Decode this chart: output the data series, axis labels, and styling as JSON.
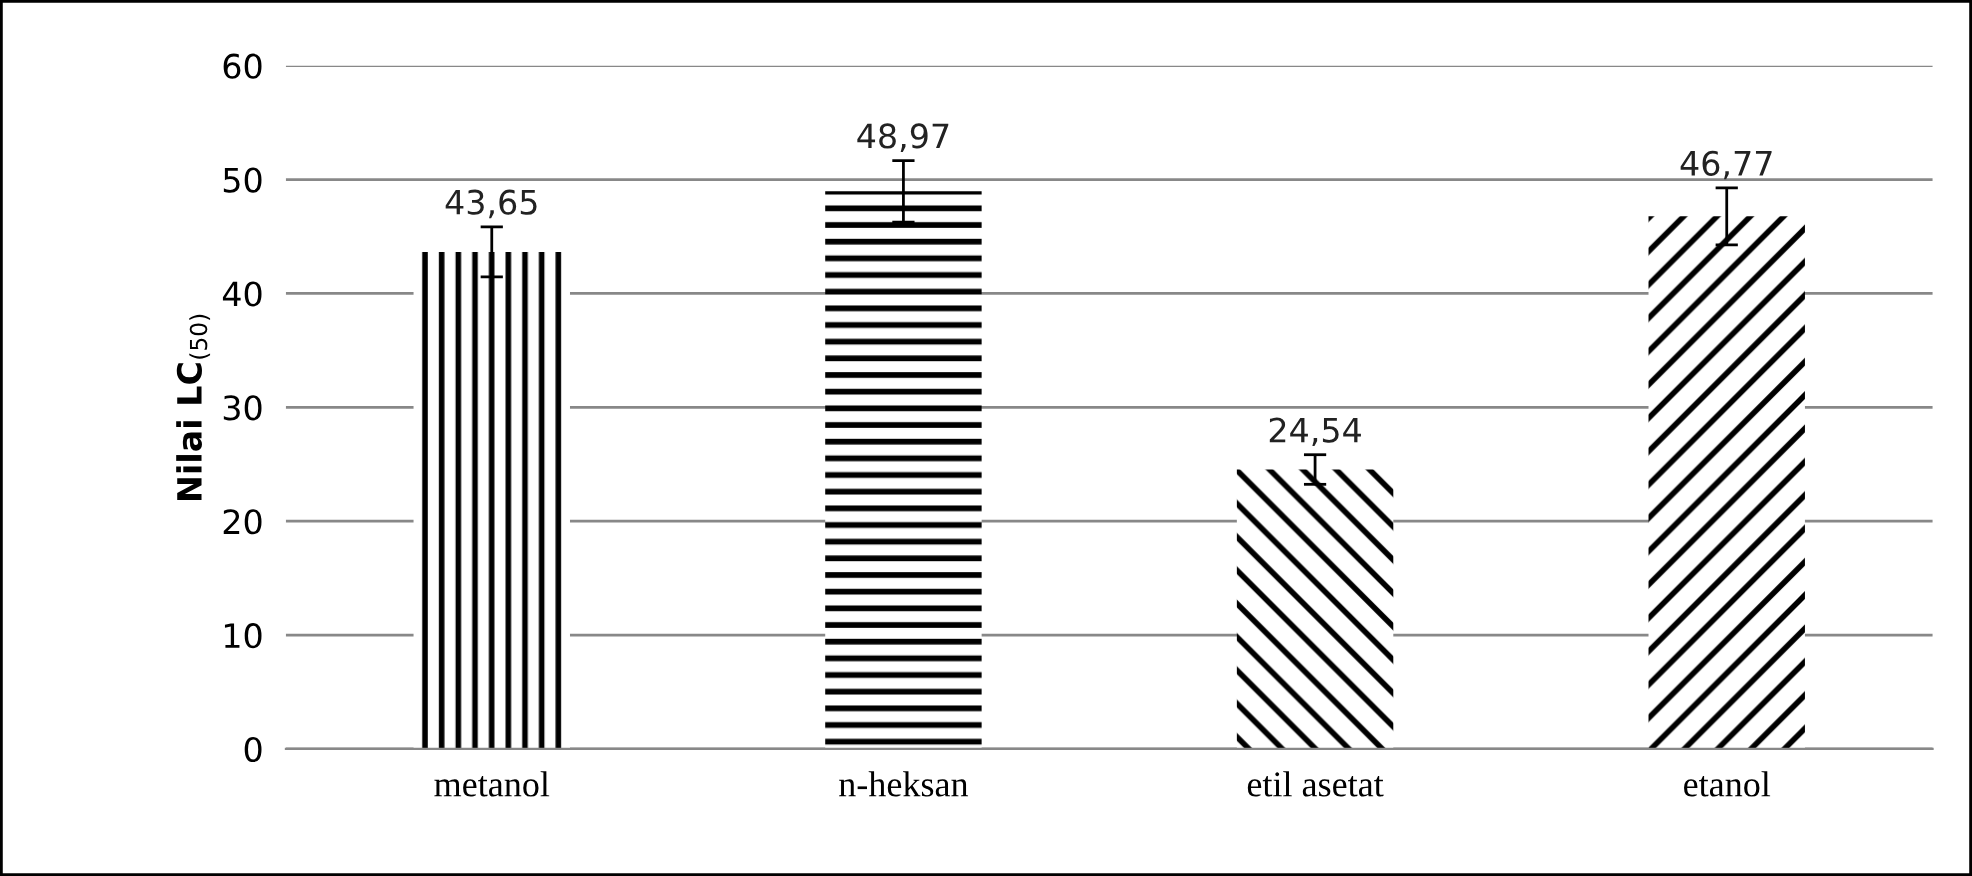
{
  "chart_data": {
    "type": "bar",
    "ylabel": "Nilai LC$_{(50)}$",
    "categories": [
      "metanol",
      "n-heksan",
      "etil asetat",
      "etanol"
    ],
    "values": [
      43.65,
      48.97,
      24.54,
      46.77
    ],
    "errors": [
      2.2,
      2.7,
      1.3,
      2.5
    ],
    "value_labels": [
      "43,65",
      "48,97",
      "24,54",
      "46,77"
    ],
    "color": "#000000",
    "ylim": [
      0,
      60
    ],
    "yticks": [
      0,
      10,
      20,
      30,
      40,
      50,
      60
    ],
    "grid": "y"
  }
}
